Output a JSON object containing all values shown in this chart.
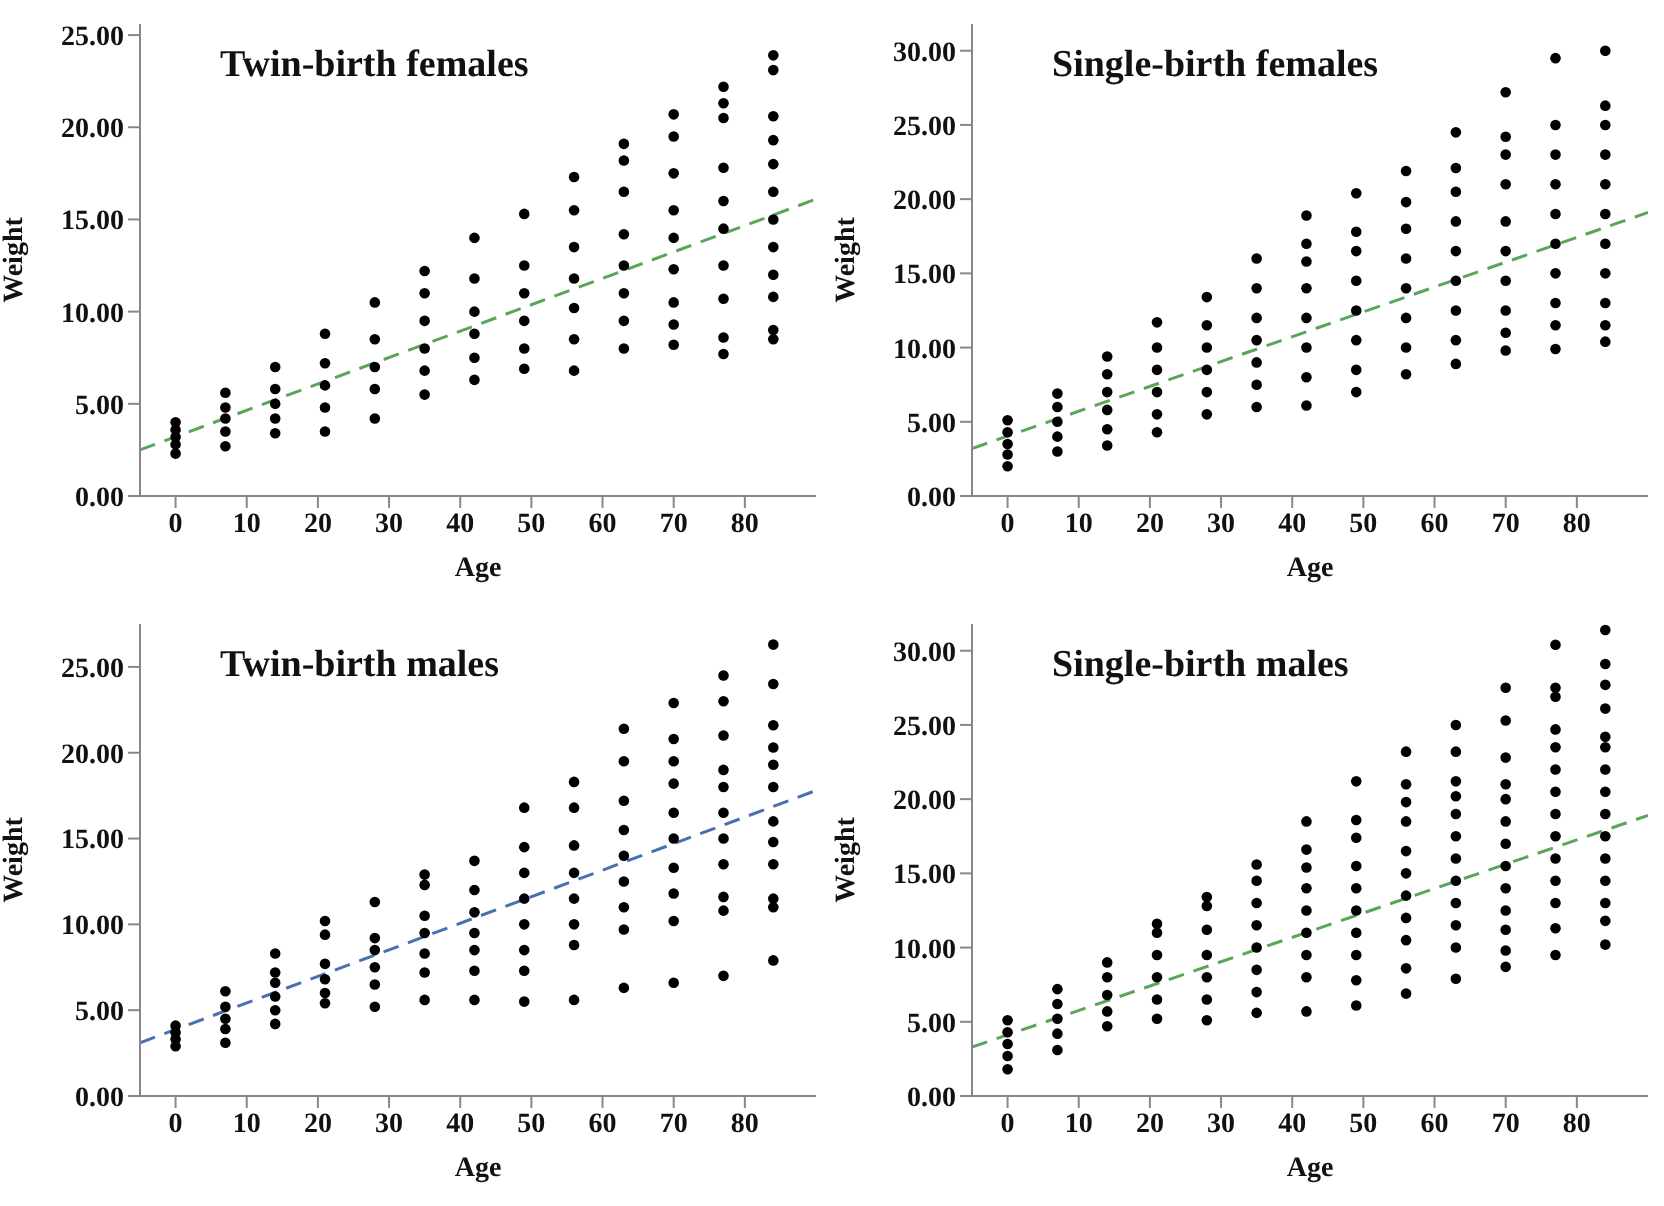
{
  "chart_data": [
    {
      "type": "scatter",
      "title": "Twin-birth females",
      "xlabel": "Age",
      "ylabel": "Weight",
      "xlim": [
        -5,
        90
      ],
      "xticks": [
        0,
        10,
        20,
        30,
        40,
        50,
        60,
        70,
        80
      ],
      "ylim": [
        0,
        25.6
      ],
      "yticks": [
        {
          "value": 0,
          "label": "0.00"
        },
        {
          "value": 5,
          "label": "5.00"
        },
        {
          "value": 10,
          "label": "10.00"
        },
        {
          "value": 15,
          "label": "15.00"
        },
        {
          "value": 20,
          "label": "20.00"
        },
        {
          "value": 25,
          "label": "25.00"
        }
      ],
      "series": [
        {
          "type": "scatter",
          "color": "#000000",
          "marker": "circle",
          "x": [
            0,
            0,
            0,
            0,
            0,
            7,
            7,
            7,
            7,
            7,
            14,
            14,
            14,
            14,
            14,
            21,
            21,
            21,
            21,
            21,
            28,
            28,
            28,
            28,
            28,
            35,
            35,
            35,
            35,
            35,
            35,
            42,
            42,
            42,
            42,
            42,
            42,
            49,
            49,
            49,
            49,
            49,
            49,
            56,
            56,
            56,
            56,
            56,
            56,
            56,
            63,
            63,
            63,
            63,
            63,
            63,
            63,
            63,
            70,
            70,
            70,
            70,
            70,
            70,
            70,
            70,
            70,
            77,
            77,
            77,
            77,
            77,
            77,
            77,
            77,
            77,
            77,
            84,
            84,
            84,
            84,
            84,
            84,
            84,
            84,
            84,
            84,
            84,
            84
          ],
          "values": [
            2.3,
            2.8,
            3.2,
            3.6,
            4.0,
            2.7,
            3.5,
            4.2,
            4.8,
            5.6,
            3.4,
            4.2,
            5.0,
            5.8,
            7.0,
            3.5,
            4.8,
            6.0,
            7.2,
            8.8,
            4.2,
            5.8,
            7.0,
            8.5,
            10.5,
            5.5,
            6.8,
            8.0,
            9.5,
            11.0,
            12.2,
            6.3,
            7.5,
            8.8,
            10.0,
            11.8,
            14.0,
            6.9,
            8.0,
            9.5,
            11.0,
            12.5,
            15.3,
            6.8,
            8.5,
            10.2,
            11.8,
            13.5,
            15.5,
            17.3,
            8.0,
            9.5,
            11.0,
            12.5,
            14.2,
            16.5,
            18.2,
            19.1,
            8.2,
            9.3,
            10.5,
            12.3,
            14.0,
            15.5,
            17.5,
            19.5,
            20.7,
            7.7,
            8.6,
            10.7,
            12.5,
            14.5,
            16.0,
            17.8,
            20.5,
            21.3,
            22.2,
            8.5,
            9.0,
            10.8,
            12.0,
            13.5,
            15.0,
            16.5,
            18.0,
            19.3,
            20.6,
            23.1,
            23.9
          ]
        },
        {
          "type": "line",
          "color": "#5aa55a",
          "line_style": "dashed",
          "marker": "none",
          "x": [
            -5,
            90
          ],
          "values": [
            2.5,
            16.1
          ]
        }
      ]
    },
    {
      "type": "scatter",
      "title": "Single-birth females",
      "xlabel": "Age",
      "ylabel": "Weight",
      "xlim": [
        -5,
        90
      ],
      "xticks": [
        0,
        10,
        20,
        30,
        40,
        50,
        60,
        70,
        80
      ],
      "ylim": [
        0,
        31.8
      ],
      "yticks": [
        {
          "value": 0,
          "label": "0.00"
        },
        {
          "value": 5,
          "label": "5.00"
        },
        {
          "value": 10,
          "label": "10.00"
        },
        {
          "value": 15,
          "label": "15.00"
        },
        {
          "value": 20,
          "label": "20.00"
        },
        {
          "value": 25,
          "label": "25.00"
        },
        {
          "value": 30,
          "label": "30.00"
        }
      ],
      "series": [
        {
          "type": "scatter",
          "color": "#000000",
          "marker": "circle",
          "x": [
            0,
            0,
            0,
            0,
            0,
            7,
            7,
            7,
            7,
            7,
            14,
            14,
            14,
            14,
            14,
            14,
            21,
            21,
            21,
            21,
            21,
            21,
            28,
            28,
            28,
            28,
            28,
            28,
            35,
            35,
            35,
            35,
            35,
            35,
            35,
            42,
            42,
            42,
            42,
            42,
            42,
            42,
            42,
            49,
            49,
            49,
            49,
            49,
            49,
            49,
            49,
            56,
            56,
            56,
            56,
            56,
            56,
            56,
            56,
            63,
            63,
            63,
            63,
            63,
            63,
            63,
            63,
            63,
            70,
            70,
            70,
            70,
            70,
            70,
            70,
            70,
            70,
            70,
            77,
            77,
            77,
            77,
            77,
            77,
            77,
            77,
            77,
            77,
            84,
            84,
            84,
            84,
            84,
            84,
            84,
            84,
            84,
            84,
            84
          ],
          "values": [
            2.0,
            2.8,
            3.5,
            4.3,
            5.1,
            3.0,
            4.0,
            5.0,
            6.0,
            6.9,
            3.4,
            4.5,
            5.8,
            7.0,
            8.2,
            9.4,
            4.3,
            5.5,
            7.0,
            8.5,
            10.0,
            11.7,
            5.5,
            7.0,
            8.5,
            10.0,
            11.5,
            13.4,
            6.0,
            7.5,
            9.0,
            10.5,
            12.0,
            14.0,
            16.0,
            6.1,
            8.0,
            10.0,
            12.0,
            14.0,
            15.8,
            17.0,
            18.9,
            7.0,
            8.5,
            10.5,
            12.5,
            14.5,
            16.5,
            17.8,
            20.4,
            8.2,
            10.0,
            12.0,
            14.0,
            16.0,
            18.0,
            19.8,
            21.9,
            8.9,
            10.5,
            12.5,
            14.5,
            16.5,
            18.5,
            20.5,
            22.1,
            24.5,
            9.8,
            11.0,
            12.5,
            14.5,
            16.5,
            18.5,
            21.0,
            23.0,
            24.2,
            27.2,
            9.9,
            11.5,
            13.0,
            15.0,
            17.0,
            19.0,
            21.0,
            23.0,
            25.0,
            29.5,
            10.4,
            11.5,
            13.0,
            15.0,
            17.0,
            19.0,
            21.0,
            23.0,
            25.0,
            26.3,
            30.0
          ]
        },
        {
          "type": "line",
          "color": "#5aa55a",
          "line_style": "dashed",
          "marker": "none",
          "x": [
            -5,
            90
          ],
          "values": [
            3.2,
            19.1
          ]
        }
      ]
    },
    {
      "type": "scatter",
      "title": "Twin-birth males",
      "xlabel": "Age",
      "ylabel": "Weight",
      "xlim": [
        -5,
        90
      ],
      "xticks": [
        0,
        10,
        20,
        30,
        40,
        50,
        60,
        70,
        80
      ],
      "ylim": [
        0,
        27.5
      ],
      "yticks": [
        {
          "value": 0,
          "label": "0.00"
        },
        {
          "value": 5,
          "label": "5.00"
        },
        {
          "value": 10,
          "label": "10.00"
        },
        {
          "value": 15,
          "label": "15.00"
        },
        {
          "value": 20,
          "label": "20.00"
        },
        {
          "value": 25,
          "label": "25.00"
        }
      ],
      "series": [
        {
          "type": "scatter",
          "color": "#000000",
          "marker": "circle",
          "x": [
            0,
            0,
            0,
            0,
            7,
            7,
            7,
            7,
            7,
            14,
            14,
            14,
            14,
            14,
            14,
            21,
            21,
            21,
            21,
            21,
            21,
            28,
            28,
            28,
            28,
            28,
            28,
            35,
            35,
            35,
            35,
            35,
            35,
            35,
            42,
            42,
            42,
            42,
            42,
            42,
            42,
            49,
            49,
            49,
            49,
            49,
            49,
            49,
            49,
            56,
            56,
            56,
            56,
            56,
            56,
            56,
            56,
            63,
            63,
            63,
            63,
            63,
            63,
            63,
            63,
            63,
            70,
            70,
            70,
            70,
            70,
            70,
            70,
            70,
            70,
            70,
            77,
            77,
            77,
            77,
            77,
            77,
            77,
            77,
            77,
            77,
            77,
            84,
            84,
            84,
            84,
            84,
            84,
            84,
            84,
            84,
            84,
            84,
            84
          ],
          "values": [
            2.9,
            3.3,
            3.7,
            4.1,
            3.1,
            3.9,
            4.5,
            5.2,
            6.1,
            4.2,
            5.0,
            5.8,
            6.6,
            7.2,
            8.3,
            5.4,
            6.0,
            6.8,
            7.7,
            9.4,
            10.2,
            5.2,
            6.5,
            7.5,
            8.5,
            9.2,
            11.3,
            5.6,
            7.2,
            8.3,
            9.5,
            10.5,
            12.3,
            12.9,
            5.6,
            7.3,
            8.5,
            9.5,
            10.7,
            12.0,
            13.7,
            5.5,
            7.3,
            8.5,
            10.0,
            11.5,
            13.0,
            14.5,
            16.8,
            5.6,
            8.8,
            10.0,
            11.5,
            13.0,
            14.6,
            16.8,
            18.3,
            6.3,
            9.7,
            11.0,
            12.5,
            14.0,
            15.5,
            17.2,
            19.5,
            21.4,
            6.6,
            10.2,
            11.8,
            13.3,
            15.0,
            16.5,
            18.2,
            19.5,
            20.8,
            22.9,
            7.0,
            10.8,
            11.6,
            13.5,
            15.0,
            16.5,
            18.0,
            19.0,
            21.0,
            23.0,
            24.5,
            7.9,
            11.0,
            11.5,
            13.5,
            14.8,
            16.0,
            18.0,
            19.3,
            20.3,
            21.6,
            24.0,
            26.3
          ]
        },
        {
          "type": "line",
          "color": "#4a6fb0",
          "line_style": "dashed",
          "marker": "none",
          "x": [
            -5,
            90
          ],
          "values": [
            3.1,
            17.8
          ]
        }
      ]
    },
    {
      "type": "scatter",
      "title": "Single-birth males",
      "xlabel": "Age",
      "ylabel": "Weight",
      "xlim": [
        -5,
        90
      ],
      "xticks": [
        0,
        10,
        20,
        30,
        40,
        50,
        60,
        70,
        80
      ],
      "ylim": [
        0,
        31.8
      ],
      "yticks": [
        {
          "value": 0,
          "label": "0.00"
        },
        {
          "value": 5,
          "label": "5.00"
        },
        {
          "value": 10,
          "label": "10.00"
        },
        {
          "value": 15,
          "label": "15.00"
        },
        {
          "value": 20,
          "label": "20.00"
        },
        {
          "value": 25,
          "label": "25.00"
        },
        {
          "value": 30,
          "label": "30.00"
        }
      ],
      "series": [
        {
          "type": "scatter",
          "color": "#000000",
          "marker": "circle",
          "x": [
            0,
            0,
            0,
            0,
            0,
            7,
            7,
            7,
            7,
            7,
            14,
            14,
            14,
            14,
            14,
            21,
            21,
            21,
            21,
            21,
            21,
            28,
            28,
            28,
            28,
            28,
            28,
            28,
            35,
            35,
            35,
            35,
            35,
            35,
            35,
            35,
            42,
            42,
            42,
            42,
            42,
            42,
            42,
            42,
            42,
            49,
            49,
            49,
            49,
            49,
            49,
            49,
            49,
            49,
            49,
            56,
            56,
            56,
            56,
            56,
            56,
            56,
            56,
            56,
            56,
            56,
            63,
            63,
            63,
            63,
            63,
            63,
            63,
            63,
            63,
            63,
            63,
            63,
            70,
            70,
            70,
            70,
            70,
            70,
            70,
            70,
            70,
            70,
            70,
            70,
            70,
            77,
            77,
            77,
            77,
            77,
            77,
            77,
            77,
            77,
            77,
            77,
            77,
            77,
            77,
            84,
            84,
            84,
            84,
            84,
            84,
            84,
            84,
            84,
            84,
            84,
            84,
            84,
            84,
            84
          ],
          "values": [
            1.8,
            2.7,
            3.5,
            4.3,
            5.1,
            3.1,
            4.2,
            5.2,
            6.2,
            7.2,
            4.7,
            5.7,
            6.8,
            8.0,
            9.0,
            5.2,
            6.5,
            8.0,
            9.5,
            11.0,
            11.6,
            5.1,
            6.5,
            8.0,
            9.5,
            11.2,
            12.8,
            13.4,
            5.6,
            7.0,
            8.5,
            10.0,
            11.5,
            13.0,
            14.5,
            15.6,
            5.7,
            8.0,
            9.5,
            11.0,
            12.5,
            14.0,
            15.4,
            16.6,
            18.5,
            6.1,
            7.8,
            9.5,
            11.0,
            12.5,
            14.0,
            15.5,
            17.4,
            18.6,
            21.2,
            6.9,
            8.6,
            10.5,
            12.0,
            13.5,
            15.0,
            16.5,
            18.5,
            19.8,
            21.0,
            23.2,
            7.9,
            10.0,
            11.5,
            13.0,
            14.5,
            16.0,
            17.5,
            19.0,
            20.2,
            21.2,
            23.2,
            25.0,
            8.7,
            9.8,
            11.2,
            12.5,
            14.0,
            15.5,
            17.0,
            18.5,
            20.0,
            21.0,
            22.8,
            25.3,
            27.5,
            9.5,
            11.3,
            13.0,
            14.5,
            16.0,
            17.5,
            19.0,
            20.5,
            22.0,
            23.5,
            24.7,
            26.9,
            27.5,
            30.4,
            10.2,
            11.8,
            13.0,
            14.5,
            16.0,
            17.5,
            19.0,
            20.5,
            22.0,
            23.5,
            24.2,
            26.1,
            27.7,
            29.1,
            31.4
          ]
        },
        {
          "type": "line",
          "color": "#5aa55a",
          "line_style": "dashed",
          "marker": "none",
          "x": [
            -5,
            90
          ],
          "values": [
            3.3,
            18.9
          ]
        }
      ]
    }
  ]
}
